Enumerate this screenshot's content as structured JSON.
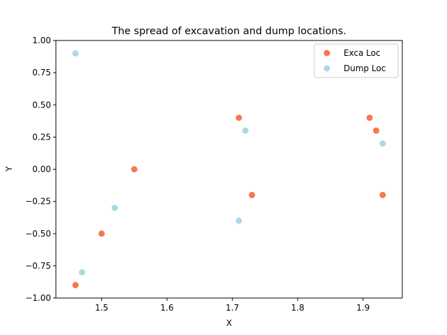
{
  "chart_data": {
    "type": "scatter",
    "title": "The spread of excavation and dump locations.",
    "xlabel": "X",
    "ylabel": "Y",
    "xlim": [
      1.43,
      1.96
    ],
    "ylim": [
      -1.0,
      1.0
    ],
    "xticks": [
      "1.5",
      "1.6",
      "1.7",
      "1.8",
      "1.9"
    ],
    "xtick_values": [
      1.5,
      1.6,
      1.7,
      1.8,
      1.9
    ],
    "yticks": [
      "−1.00",
      "−0.75",
      "−0.50",
      "−0.25",
      "0.00",
      "0.25",
      "0.50",
      "0.75",
      "1.00"
    ],
    "ytick_values": [
      -1.0,
      -0.75,
      -0.5,
      -0.25,
      0.0,
      0.25,
      0.5,
      0.75,
      1.0
    ],
    "grid": false,
    "legend_position": "top-right",
    "series": [
      {
        "name": "Exca Loc",
        "color": "#f4794f",
        "points": [
          {
            "x": 1.46,
            "y": -0.9
          },
          {
            "x": 1.5,
            "y": -0.5
          },
          {
            "x": 1.55,
            "y": 0.0
          },
          {
            "x": 1.71,
            "y": 0.4
          },
          {
            "x": 1.73,
            "y": -0.2
          },
          {
            "x": 1.91,
            "y": 0.4
          },
          {
            "x": 1.92,
            "y": 0.3
          },
          {
            "x": 1.93,
            "y": -0.2
          }
        ]
      },
      {
        "name": "Dump Loc",
        "color": "#add8e6",
        "points": [
          {
            "x": 1.46,
            "y": 0.9
          },
          {
            "x": 1.47,
            "y": -0.8
          },
          {
            "x": 1.52,
            "y": -0.3
          },
          {
            "x": 1.71,
            "y": -0.4
          },
          {
            "x": 1.72,
            "y": 0.3
          },
          {
            "x": 1.93,
            "y": 0.2
          }
        ]
      }
    ]
  }
}
